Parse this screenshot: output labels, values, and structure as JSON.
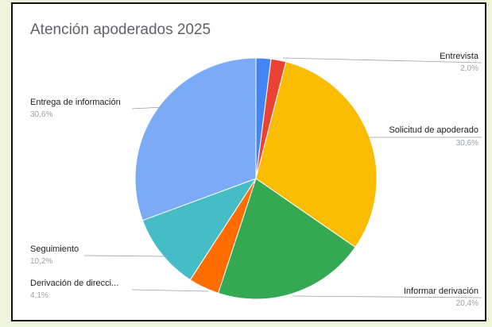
{
  "chart_data": {
    "type": "pie",
    "title": "Atención apoderados 2025",
    "slices": [
      {
        "label": "",
        "percent_label": "",
        "value": 2.0,
        "color": "#4285f4"
      },
      {
        "label": "Entrevista",
        "percent_label": "2,0%",
        "value": 2.0,
        "color": "#ea4335"
      },
      {
        "label": "Solicitud de apoderado",
        "percent_label": "30,6%",
        "value": 30.6,
        "color": "#fbbc04"
      },
      {
        "label": "Informar derivación",
        "percent_label": "20,4%",
        "value": 20.4,
        "color": "#34a853"
      },
      {
        "label": "Derivación de direcci...",
        "percent_label": "4,1%",
        "value": 4.1,
        "color": "#ff6d01"
      },
      {
        "label": "Seguimiento",
        "percent_label": "10,2%",
        "value": 10.2,
        "color": "#46bdc6"
      },
      {
        "label": "Entrega de información",
        "percent_label": "30,6%",
        "value": 30.6,
        "color": "#7baaf7"
      }
    ]
  }
}
